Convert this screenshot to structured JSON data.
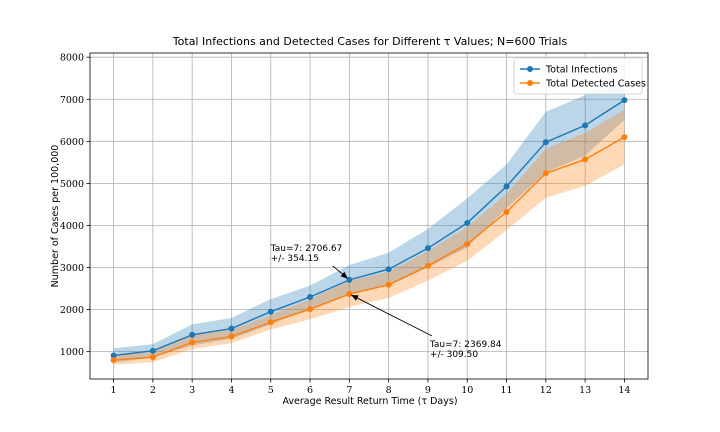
{
  "chart_data": {
    "type": "line",
    "title": "Total Infections and Detected Cases for Different τ Values; N=600 Trials",
    "xlabel": "Average Result Return Time (τ Days)",
    "ylabel": "Number of Cases per 100,000",
    "x": [
      1,
      2,
      3,
      4,
      5,
      6,
      7,
      8,
      9,
      10,
      11,
      12,
      13,
      14
    ],
    "xlim": [
      0.4,
      14.6
    ],
    "ylim": [
      350,
      8100
    ],
    "xticks": [
      1,
      2,
      3,
      4,
      5,
      6,
      7,
      8,
      9,
      10,
      11,
      12,
      13,
      14
    ],
    "yticks": [
      1000,
      2000,
      3000,
      4000,
      5000,
      6000,
      7000,
      8000
    ],
    "grid": true,
    "legend_position": "top-right",
    "series": [
      {
        "name": "Total Infections",
        "color": "#1f77b4",
        "values": [
          910,
          1020,
          1400,
          1550,
          1950,
          2300,
          2706.67,
          2960,
          3460,
          4060,
          4930,
          5980,
          6380,
          6980
        ],
        "upper": [
          1080,
          1180,
          1650,
          1800,
          2250,
          2570,
          3060.82,
          3350,
          3920,
          4640,
          5450,
          6700,
          7100,
          7450
        ],
        "lower": [
          740,
          860,
          1150,
          1300,
          1650,
          2030,
          2352.52,
          2570,
          3000,
          3480,
          4410,
          5260,
          5660,
          6510
        ]
      },
      {
        "name": "Total Detected Cases",
        "color": "#ff7f0e",
        "values": [
          800,
          870,
          1220,
          1360,
          1700,
          2010,
          2369.84,
          2590,
          3040,
          3560,
          4320,
          5240,
          5570,
          6100
        ],
        "upper": [
          910,
          990,
          1380,
          1520,
          1870,
          2250,
          2679.34,
          2900,
          3390,
          3960,
          4750,
          5820,
          6200,
          6750
        ],
        "lower": [
          690,
          750,
          1060,
          1200,
          1530,
          1770,
          2060.34,
          2280,
          2690,
          3160,
          3890,
          4660,
          4940,
          5450
        ]
      }
    ],
    "annotations": [
      {
        "line1": "Tau=7: 2706.67",
        "line2": "+/- 354.15",
        "x": 7,
        "y": 2706.67,
        "text_x": 5.0,
        "text_y": 3180
      },
      {
        "line1": "Tau=7: 2369.84",
        "line2": "+/- 309.50",
        "x": 7,
        "y": 2369.84,
        "text_x": 9.05,
        "text_y": 900
      }
    ]
  }
}
